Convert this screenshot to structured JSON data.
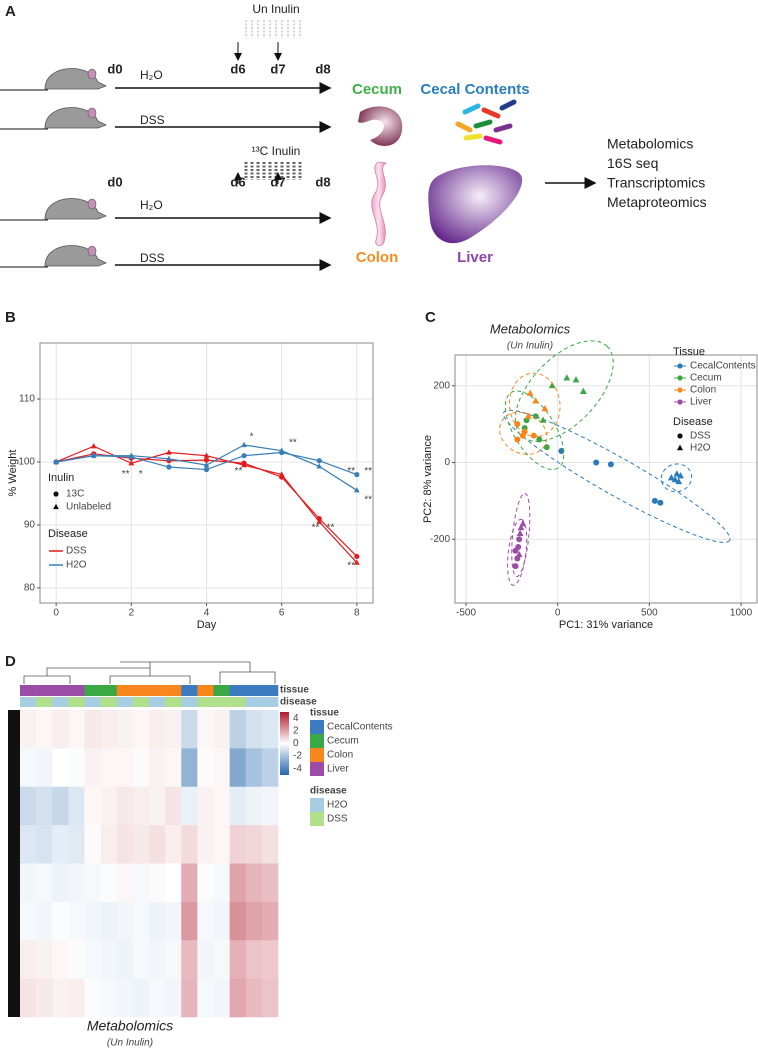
{
  "panel_labels": [
    "A",
    "B",
    "C",
    "D"
  ],
  "diagram": {
    "inulin_labels": [
      "Un Inulin",
      "¹³C Inulin"
    ],
    "days": [
      "d0",
      "d6",
      "d7",
      "d8"
    ],
    "treatments": [
      "H₂O",
      "DSS"
    ],
    "organs": [
      {
        "label": "Cecum",
        "color": "#3db049"
      },
      {
        "label": "Cecal Contents",
        "color": "#2a7ebf"
      },
      {
        "label": "Colon",
        "color": "#f68b1f"
      },
      {
        "label": "Liver",
        "color": "#8e44ad"
      }
    ],
    "outputs": [
      "Metabolomics",
      "16S seq",
      "Transcriptomics",
      "Metaproteomics"
    ]
  },
  "chart_data": [
    {
      "type": "line",
      "xlabel": "Day",
      "ylabel": "% Weight",
      "x": [
        0,
        1,
        2,
        3,
        4,
        5,
        6,
        7,
        8
      ],
      "xlim": [
        -0.43,
        8.43
      ],
      "ylim": [
        77.6,
        118.9
      ],
      "xticks": [
        0,
        2,
        4,
        6,
        8
      ],
      "yticks": [
        80,
        90,
        100,
        110
      ],
      "grid": true,
      "inulin_title": "Inulin",
      "inulin": [
        "13C",
        "Unlabeled"
      ],
      "disease_title": "Disease",
      "disease": [
        {
          "name": "DSS",
          "color": "#e41a1c"
        },
        {
          "name": "H2O",
          "color": "#377eb8"
        }
      ],
      "series": [
        {
          "inulin": 0,
          "disease": 0,
          "values": [
            100,
            101.3,
            100.6,
            100.2,
            100.3,
            99.8,
            97.6,
            91,
            85
          ]
        },
        {
          "inulin": 1,
          "disease": 0,
          "values": [
            100,
            102.5,
            99.8,
            101.5,
            101,
            99.5,
            98,
            90.5,
            84
          ]
        },
        {
          "inulin": 0,
          "disease": 1,
          "values": [
            100,
            101,
            100.8,
            99.2,
            98.8,
            101,
            101.5,
            100.2,
            98
          ]
        },
        {
          "inulin": 1,
          "disease": 1,
          "values": [
            100,
            101,
            101,
            100.5,
            99.5,
            102.7,
            101.8,
            99.3,
            95.5
          ]
        }
      ],
      "annotations": [
        {
          "text": "**",
          "x": 1.85,
          "y": 98
        },
        {
          "text": "*",
          "x": 2.25,
          "y": 98
        },
        {
          "text": "*",
          "x": 5.2,
          "y": 104
        },
        {
          "text": "**",
          "x": 4.85,
          "y": 98.5
        },
        {
          "text": "**",
          "x": 6.3,
          "y": 103
        },
        {
          "text": "**",
          "x": 6.9,
          "y": 89.5
        },
        {
          "text": "**",
          "x": 7.3,
          "y": 89.5
        },
        {
          "text": "**",
          "x": 7.85,
          "y": 98.5
        },
        {
          "text": "**",
          "x": 8.3,
          "y": 98.5
        },
        {
          "text": "**",
          "x": 8.3,
          "y": 94
        },
        {
          "text": "**",
          "x": 7.85,
          "y": 83.5
        }
      ]
    },
    {
      "type": "scatter",
      "title": "Metabolomics",
      "subtitle": "(Un Inulin)",
      "xlabel": "PC1: 31% variance",
      "ylabel": "PC2: 8% variance",
      "xlim": [
        -560,
        1087
      ],
      "ylim": [
        -366,
        280
      ],
      "xticks": [
        -500,
        0,
        500,
        1000
      ],
      "yticks": [
        -200,
        0,
        200
      ],
      "grid": true,
      "tissue_title": "Tissue",
      "disease_title": "Disease",
      "disease": [
        "DSS",
        "H2O"
      ],
      "series": [
        {
          "name": "CecalContents",
          "color": "#2b7bba",
          "x": [
            20,
            210,
            290,
            530,
            560,
            620,
            650,
            660,
            640,
            670
          ],
          "y": [
            30,
            0,
            -5,
            -100,
            -105,
            -40,
            -30,
            -50,
            -45,
            -35
          ],
          "disease": [
            0,
            0,
            0,
            0,
            0,
            1,
            1,
            1,
            1,
            1
          ]
        },
        {
          "name": "Cecum",
          "color": "#3aa845",
          "x": [
            -180,
            -120,
            -170,
            -60,
            -100,
            -30,
            50,
            100,
            140,
            -80
          ],
          "y": [
            90,
            120,
            110,
            40,
            60,
            200,
            220,
            215,
            185,
            110
          ],
          "disease": [
            0,
            0,
            0,
            0,
            0,
            1,
            1,
            1,
            1,
            1
          ]
        },
        {
          "name": "Colon",
          "color": "#f7861d",
          "x": [
            -220,
            -180,
            -130,
            -220,
            -190,
            -150,
            -120,
            -70,
            -160
          ],
          "y": [
            60,
            80,
            70,
            100,
            70,
            180,
            160,
            140,
            120
          ],
          "disease": [
            0,
            0,
            0,
            0,
            0,
            1,
            1,
            1,
            1
          ]
        },
        {
          "name": "Liver",
          "color": "#9b4ca7",
          "x": [
            -230,
            -220,
            -210,
            -230,
            -215,
            -200,
            -190,
            -205,
            -210
          ],
          "y": [
            -230,
            -250,
            -200,
            -270,
            -220,
            -170,
            -160,
            -185,
            -240
          ],
          "disease": [
            0,
            0,
            0,
            0,
            0,
            1,
            1,
            1,
            1
          ]
        }
      ]
    },
    {
      "type": "heatmap",
      "title": "Metabolomics",
      "subtitle": "(Un Inulin)",
      "row_annotation_titles": [
        "tissue",
        "disease"
      ],
      "colorlim": [
        -5,
        5
      ],
      "colorticks": [
        4,
        2,
        0,
        -2,
        -4
      ],
      "tissue_title": "tissue",
      "tissues": [
        {
          "name": "CecalContents",
          "color": "#3c7bbf"
        },
        {
          "name": "Cecum",
          "color": "#3aa845"
        },
        {
          "name": "Colon",
          "color": "#f7861d"
        },
        {
          "name": "Liver",
          "color": "#9b4ca7"
        }
      ],
      "disease_title": "disease",
      "diseases": [
        {
          "name": "H2O",
          "color": "#a6cee3"
        },
        {
          "name": "DSS",
          "color": "#b2df8a"
        }
      ],
      "column_tissue": [
        3,
        3,
        3,
        3,
        1,
        1,
        2,
        2,
        2,
        2,
        0,
        2,
        1,
        0,
        0,
        0
      ],
      "column_disease": [
        0,
        1,
        0,
        1,
        0,
        1,
        0,
        1,
        0,
        1,
        0,
        1,
        1,
        1,
        0,
        0
      ],
      "values": [
        [
          0.3,
          0.2,
          0.4,
          0.2,
          0.5,
          0.4,
          0.3,
          0.2,
          0.4,
          0.3,
          -1.2,
          0.2,
          0.3,
          -1.5,
          -1.0,
          -0.8
        ],
        [
          -0.2,
          -0.3,
          0,
          -0.1,
          0.3,
          0.2,
          0.2,
          0.1,
          0.3,
          0.2,
          -2.5,
          0.1,
          0.2,
          -2.8,
          -2.0,
          -1.5
        ],
        [
          -1.2,
          -1.0,
          -1.3,
          -0.8,
          0.2,
          0.3,
          0.5,
          0.4,
          0.3,
          0.6,
          -0.5,
          0.3,
          0.2,
          -0.6,
          -0.4,
          -0.3
        ],
        [
          -0.8,
          -0.9,
          -0.6,
          -0.7,
          0.1,
          0.4,
          0.6,
          0.5,
          0.7,
          0.4,
          0.8,
          0.3,
          0.2,
          1.0,
          0.9,
          0.7
        ],
        [
          -0.3,
          -0.2,
          -0.4,
          -0.3,
          -0.2,
          -0.1,
          0.2,
          -0.2,
          0.1,
          0,
          1.8,
          -0.1,
          -0.2,
          2.0,
          1.6,
          1.4
        ],
        [
          -0.2,
          -0.3,
          -0.1,
          -0.2,
          -0.3,
          -0.4,
          -0.3,
          -0.2,
          -0.4,
          -0.3,
          2.2,
          -0.2,
          -0.3,
          2.4,
          2.0,
          1.8
        ],
        [
          0.4,
          0.3,
          0.2,
          0.1,
          -0.2,
          -0.3,
          -0.4,
          -0.2,
          -0.3,
          -0.2,
          1.5,
          -0.3,
          -0.2,
          1.7,
          1.3,
          1.2
        ],
        [
          0.6,
          0.5,
          0.3,
          0.4,
          -0.1,
          -0.2,
          -0.3,
          -0.4,
          -0.2,
          -0.3,
          1.6,
          -0.2,
          -0.3,
          1.9,
          1.5,
          1.3
        ]
      ]
    }
  ]
}
